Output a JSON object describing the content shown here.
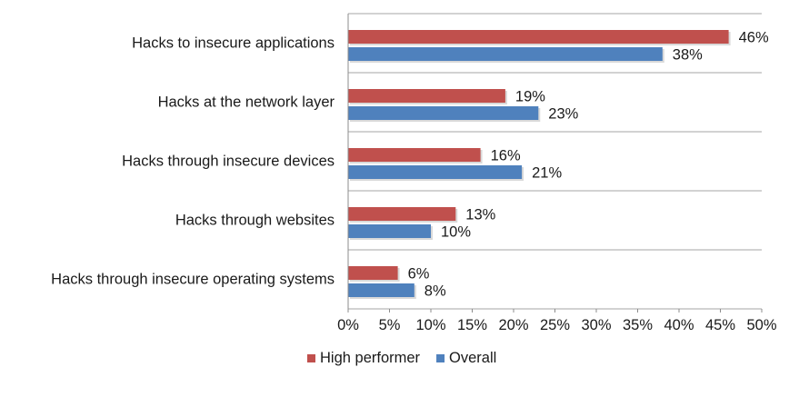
{
  "chart_data": {
    "type": "bar",
    "orientation": "horizontal",
    "categories": [
      "Hacks to insecure applications",
      "Hacks at the network layer",
      "Hacks through insecure devices",
      "Hacks through websites",
      "Hacks through insecure operating systems"
    ],
    "series": [
      {
        "name": "High performer",
        "values": [
          46,
          19,
          16,
          13,
          6
        ],
        "color": "#c0504d"
      },
      {
        "name": "Overall",
        "values": [
          38,
          23,
          21,
          10,
          8
        ],
        "color": "#4f81bd"
      }
    ],
    "value_suffix": "%",
    "xlim": [
      0,
      50
    ],
    "x_ticks": [
      0,
      5,
      10,
      15,
      20,
      25,
      30,
      35,
      40,
      45,
      50
    ],
    "grid": "horizontal separators between categories",
    "legend_position": "bottom-center",
    "title": "",
    "xlabel": "",
    "ylabel": ""
  }
}
